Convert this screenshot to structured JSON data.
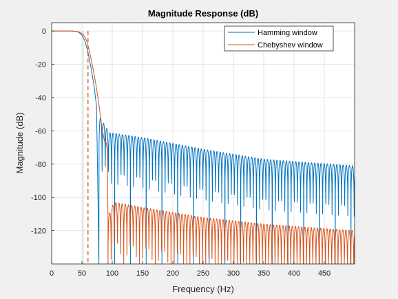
{
  "chart_data": {
    "type": "line",
    "title": "Magnitude Response (dB)",
    "xlabel": "Frequency (Hz)",
    "ylabel": "Magnitude (dB)",
    "xlim": [
      0,
      500
    ],
    "ylim": [
      -140,
      5
    ],
    "xticks": [
      0,
      50,
      100,
      150,
      200,
      250,
      300,
      350,
      400,
      450
    ],
    "yticks": [
      0,
      -20,
      -40,
      -60,
      -80,
      -100,
      -120
    ],
    "grid": true,
    "legend_position": "top-right",
    "marker_line": {
      "x": 60,
      "style": "dashed",
      "color": "#d95319"
    },
    "faint_line": {
      "x": 52,
      "color": "#b5d5a5"
    },
    "series": [
      {
        "name": "Hamming window",
        "color": "#0072bd",
        "passband": [
          [
            0,
            0
          ],
          [
            30,
            0
          ],
          [
            40,
            -0.2
          ],
          [
            45,
            -0.8
          ],
          [
            50,
            -2.5
          ],
          [
            55,
            -6
          ],
          [
            60,
            -13
          ],
          [
            65,
            -22
          ],
          [
            70,
            -33
          ],
          [
            74,
            -45
          ],
          [
            76,
            -89
          ]
        ],
        "sidelobes": {
          "start": 78,
          "period": 5.2,
          "peaks": [
            [
              80,
              -52
            ],
            [
              95,
              -61
            ],
            [
              150,
              -64
            ],
            [
              250,
              -71
            ],
            [
              350,
              -77
            ],
            [
              500,
              -81
            ]
          ],
          "null_depth": -140
        }
      },
      {
        "name": "Chebyshev window",
        "color": "#d95319",
        "passband": [
          [
            0,
            0
          ],
          [
            35,
            0
          ],
          [
            45,
            -0.5
          ],
          [
            52,
            -2
          ],
          [
            58,
            -6
          ],
          [
            63,
            -13
          ],
          [
            68,
            -22
          ],
          [
            73,
            -32
          ],
          [
            78,
            -44
          ],
          [
            83,
            -58
          ],
          [
            87,
            -66
          ],
          [
            90,
            -67
          ],
          [
            92,
            -72
          ],
          [
            93,
            -112
          ]
        ],
        "sidelobes": {
          "start": 93,
          "period": 5.2,
          "peaks": [
            [
              93,
              -112
            ],
            [
              100,
              -105
            ],
            [
              105,
              -103
            ],
            [
              150,
              -106
            ],
            [
              250,
              -112
            ],
            [
              350,
              -116
            ],
            [
              500,
              -120
            ]
          ],
          "null_depth": -140
        }
      }
    ]
  }
}
